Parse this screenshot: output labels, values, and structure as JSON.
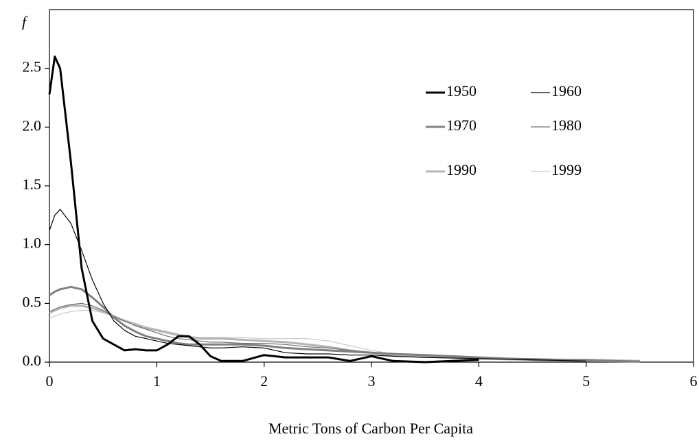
{
  "chart_data": {
    "type": "line",
    "ylabel": "f",
    "xlabel": "Metric Tons of Carbon Per Capita",
    "x": [
      0,
      0.05,
      0.1,
      0.2,
      0.3,
      0.4,
      0.5,
      0.6,
      0.7,
      0.8,
      0.9,
      1.0,
      1.1,
      1.2,
      1.3,
      1.4,
      1.5,
      1.6,
      1.8,
      2.0,
      2.2,
      2.4,
      2.6,
      2.8,
      3.0,
      3.2,
      3.5,
      4.0,
      4.5,
      5.0,
      5.5
    ],
    "series": [
      {
        "name": "1950",
        "color": "#000000",
        "values": [
          2.28,
          2.6,
          2.5,
          1.7,
          0.8,
          0.35,
          0.2,
          0.15,
          0.1,
          0.11,
          0.1,
          0.1,
          0.15,
          0.22,
          0.22,
          0.15,
          0.05,
          0.01,
          0.01,
          0.06,
          0.04,
          0.04,
          0.04,
          0.01,
          0.05,
          0.01,
          0,
          0.02,
          null,
          null,
          null
        ]
      },
      {
        "name": "1960",
        "color": "#000000",
        "values": [
          1.12,
          1.25,
          1.3,
          1.18,
          0.95,
          0.7,
          0.5,
          0.35,
          0.27,
          0.22,
          0.2,
          0.18,
          0.16,
          0.15,
          0.14,
          0.13,
          0.12,
          0.12,
          0.13,
          0.12,
          0.08,
          0.07,
          0.07,
          0.06,
          0.06,
          0.05,
          0.04,
          0.03,
          0.02,
          0.01,
          null
        ]
      },
      {
        "name": "1970",
        "color": "#808080",
        "values": [
          0.57,
          0.6,
          0.62,
          0.64,
          0.62,
          0.55,
          0.47,
          0.38,
          0.31,
          0.26,
          0.22,
          0.2,
          0.18,
          0.16,
          0.15,
          0.15,
          0.15,
          0.15,
          0.15,
          0.14,
          0.12,
          0.11,
          0.1,
          0.09,
          0.08,
          0.07,
          0.06,
          0.04,
          0.02,
          0.01,
          0.005
        ]
      },
      {
        "name": "1980",
        "color": "#707070",
        "values": [
          0.43,
          0.45,
          0.47,
          0.49,
          0.5,
          0.48,
          0.44,
          0.39,
          0.35,
          0.31,
          0.28,
          0.25,
          0.22,
          0.2,
          0.19,
          0.18,
          0.17,
          0.17,
          0.16,
          0.16,
          0.15,
          0.13,
          0.12,
          0.1,
          0.08,
          0.07,
          0.06,
          0.04,
          0.03,
          0.02,
          0.01
        ]
      },
      {
        "name": "1990",
        "color": "#b4b4b4",
        "values": [
          0.42,
          0.44,
          0.46,
          0.48,
          0.48,
          0.46,
          0.43,
          0.39,
          0.35,
          0.32,
          0.29,
          0.27,
          0.25,
          0.23,
          0.21,
          0.2,
          0.2,
          0.2,
          0.19,
          0.18,
          0.17,
          0.15,
          0.13,
          0.1,
          0.08,
          0.06,
          0.05,
          0.03,
          0.02,
          0.02,
          0.01
        ]
      },
      {
        "name": "1999",
        "color": "#c8c8c8",
        "values": [
          0.37,
          0.39,
          0.41,
          0.43,
          0.44,
          0.44,
          0.42,
          0.39,
          0.36,
          0.33,
          0.3,
          0.28,
          0.26,
          0.24,
          0.22,
          0.21,
          0.21,
          0.21,
          0.21,
          0.2,
          0.2,
          0.2,
          0.18,
          0.14,
          0.1,
          0.07,
          0.05,
          0.03,
          0.02,
          0.02,
          0.01
        ]
      }
    ],
    "xlim": [
      0,
      6
    ],
    "xticks": [
      0,
      1,
      2,
      3,
      4,
      5,
      6
    ],
    "ylim": [
      0,
      3
    ],
    "yticks": [
      {
        "value": 0,
        "label": "0.0"
      },
      0.5,
      {
        "value": 1,
        "label": "1.0"
      },
      1.5,
      {
        "value": 2,
        "label": "2.0"
      },
      2.5
    ]
  }
}
